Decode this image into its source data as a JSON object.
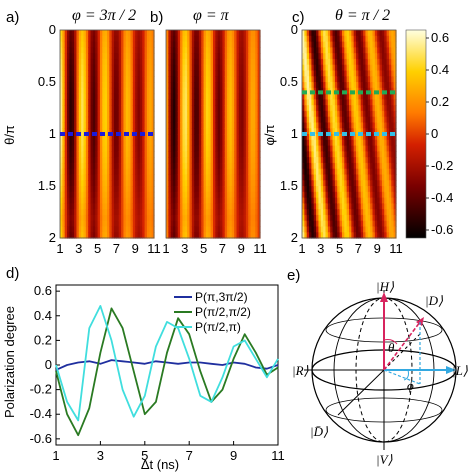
{
  "chart_data": [
    {
      "type": "heatmap",
      "panel_label": "a)",
      "title": "φ = 3π / 2",
      "xlabel": "",
      "ylabel": "θ/π",
      "x_ticks": [
        "1",
        "3",
        "5",
        "7",
        "9",
        "11"
      ],
      "y_ticks": [
        "0",
        "0.5",
        "1",
        "1.5",
        "2"
      ],
      "xlim": [
        1,
        11
      ],
      "ylim": [
        0,
        2
      ],
      "marker_lines": [
        {
          "y": 1,
          "color": "#1a1adc"
        }
      ],
      "pattern": {
        "period_ns": 2.4,
        "phase": 0,
        "tilt": 0
      }
    },
    {
      "type": "heatmap",
      "panel_label": "b)",
      "title": "φ = π",
      "xlabel": "",
      "ylabel": "",
      "x_ticks": [
        "1",
        "3",
        "5",
        "7",
        "9",
        "11"
      ],
      "y_ticks": [],
      "xlim": [
        1,
        11
      ],
      "ylim": [
        0,
        2
      ],
      "marker_lines": [],
      "pattern": {
        "period_ns": 2.4,
        "phase": 0.9,
        "tilt": 0
      }
    },
    {
      "type": "heatmap",
      "panel_label": "c)",
      "title": "θ = π / 2",
      "xlabel": "",
      "ylabel": "φ/π",
      "x_ticks": [
        "1",
        "3",
        "5",
        "7",
        "9",
        "11"
      ],
      "y_ticks": [
        "0",
        "0.5",
        "1",
        "1.5",
        "2"
      ],
      "xlim": [
        1,
        11
      ],
      "ylim": [
        0,
        2
      ],
      "marker_lines": [
        {
          "y": 0.6,
          "color": "#22aa55"
        },
        {
          "y": 1,
          "color": "#33c0e6"
        }
      ],
      "pattern": {
        "period_ns": 2.4,
        "phase": 0,
        "tilt": 1
      }
    },
    {
      "type": "colorbar",
      "ticks": [
        "0.6",
        "0.4",
        "0.2",
        "0",
        "-0.2",
        "-0.4",
        "-0.6"
      ],
      "range": [
        -0.65,
        0.65
      ]
    },
    {
      "type": "line",
      "panel_label": "d)",
      "xlabel": "Δt (ns)",
      "ylabel": "Polarization degree",
      "xlim": [
        1,
        11
      ],
      "ylim": [
        -0.65,
        0.65
      ],
      "x_ticks": [
        "1",
        "3",
        "5",
        "7",
        "9",
        "11"
      ],
      "y_ticks": [
        "0.6",
        "0.4",
        "0.2",
        "0",
        "-0.2",
        "-0.4",
        "-0.6"
      ],
      "series": [
        {
          "name": "P(π,3π/2)",
          "color": "#1f2f9f",
          "x": [
            1.0,
            1.5,
            2.0,
            2.5,
            3.0,
            3.5,
            4.0,
            4.5,
            5.0,
            5.5,
            6.0,
            6.5,
            7.0,
            7.5,
            8.0,
            8.5,
            9.0,
            9.5,
            10.0,
            10.5,
            11.0
          ],
          "values": [
            -0.04,
            0.0,
            0.02,
            0.03,
            0.01,
            0.04,
            0.03,
            0.02,
            0.01,
            0.03,
            0.02,
            0.01,
            0.02,
            0.02,
            0.01,
            0.0,
            0.02,
            0.01,
            -0.02,
            -0.03,
            0.0
          ]
        },
        {
          "name": "P(π/2,π/2)",
          "color": "#2a7a22",
          "x": [
            1.0,
            1.5,
            2.0,
            2.5,
            3.0,
            3.5,
            4.0,
            4.5,
            5.0,
            5.5,
            6.0,
            6.5,
            7.0,
            7.5,
            8.0,
            8.5,
            9.0,
            9.5,
            10.0,
            10.5,
            11.0
          ],
          "values": [
            -0.05,
            -0.4,
            -0.57,
            -0.35,
            0.1,
            0.46,
            0.3,
            -0.05,
            -0.4,
            -0.3,
            0.1,
            0.38,
            0.25,
            -0.05,
            -0.3,
            -0.2,
            0.05,
            0.25,
            0.1,
            -0.08,
            -0.02
          ]
        },
        {
          "name": "P(π/2,π)",
          "color": "#40dede",
          "x": [
            1.0,
            1.5,
            2.0,
            2.5,
            3.0,
            3.5,
            4.0,
            4.5,
            5.0,
            5.5,
            6.0,
            6.5,
            7.0,
            7.5,
            8.0,
            8.5,
            9.0,
            9.5,
            10.0,
            10.5,
            11.0
          ],
          "values": [
            0.0,
            -0.3,
            -0.45,
            0.3,
            0.48,
            0.2,
            -0.2,
            -0.42,
            -0.25,
            0.15,
            0.35,
            0.3,
            0.05,
            -0.25,
            -0.3,
            -0.1,
            0.15,
            0.2,
            0.05,
            -0.1,
            0.05
          ]
        }
      ]
    }
  ],
  "bloch": {
    "panel_label": "e)",
    "labels": {
      "H": "|H⟩",
      "V": "|V⟩",
      "D": "|D⟩",
      "Dbar": "|D̄⟩",
      "R": "|R⟩",
      "L": "|L⟩",
      "theta": "θ",
      "phi": "ϕ"
    },
    "colors": {
      "theta_arrow": "#d8245e",
      "phi_arrow": "#33a8e0",
      "state_vector": "#d8245e"
    }
  }
}
